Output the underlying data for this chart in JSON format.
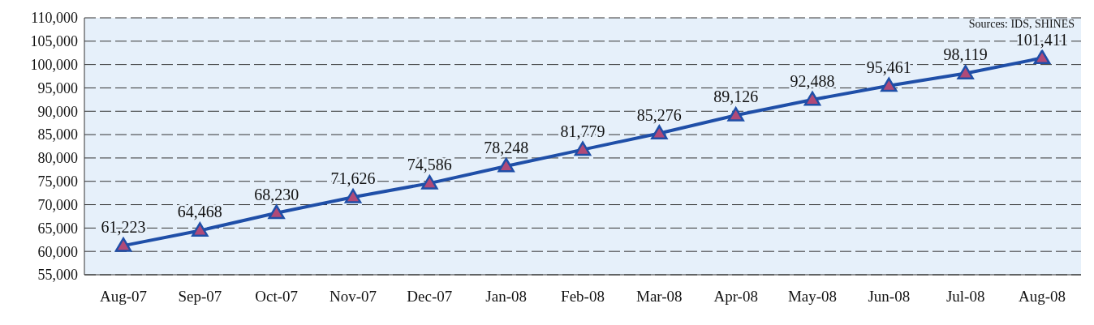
{
  "chart_data": {
    "type": "line",
    "categories": [
      "Aug-07",
      "Sep-07",
      "Oct-07",
      "Nov-07",
      "Dec-07",
      "Jan-08",
      "Feb-08",
      "Mar-08",
      "Apr-08",
      "May-08",
      "Jun-08",
      "Jul-08",
      "Aug-08"
    ],
    "series": [
      {
        "color": "#1f4fa8",
        "values": [
          61223,
          64468,
          68230,
          71626,
          74586,
          78248,
          81779,
          85276,
          89126,
          92488,
          95461,
          98119,
          101411
        ],
        "value_labels": [
          "61,223",
          "64,468",
          "68,230",
          "71,626",
          "74,586",
          "78,248",
          "81,779",
          "85,276",
          "89,126",
          "92,488",
          "95,461",
          "98,119",
          "101,411"
        ]
      }
    ],
    "ylim": [
      55000,
      110000
    ],
    "yticks": [
      {
        "value": 55000,
        "label": "55,000"
      },
      {
        "value": 60000,
        "label": "60,000"
      },
      {
        "value": 65000,
        "label": "65,000"
      },
      {
        "value": 70000,
        "label": "70,000"
      },
      {
        "value": 75000,
        "label": "75,000"
      },
      {
        "value": 80000,
        "label": "80,000"
      },
      {
        "value": 85000,
        "label": "85,000"
      },
      {
        "value": 90000,
        "label": "90,000"
      },
      {
        "value": 95000,
        "label": "95,000"
      },
      {
        "value": 100000,
        "label": "100,000"
      },
      {
        "value": 105000,
        "label": "105,000"
      },
      {
        "value": 110000,
        "label": "110,000"
      }
    ],
    "grid": "y",
    "marker": "triangle",
    "line_style": "solid",
    "legend": false,
    "annotations": [
      "Sources: IDS, SHINES"
    ]
  }
}
